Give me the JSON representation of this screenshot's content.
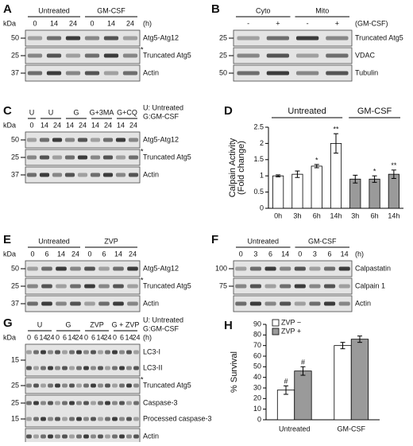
{
  "panels": [
    {
      "letter": "A",
      "kda": "kDa",
      "unit": "(h)",
      "groups": [
        {
          "label": "Untreated",
          "lanes": [
            "0",
            "14",
            "24"
          ]
        },
        {
          "label": "GM-CSF",
          "lanes": [
            "0",
            "14",
            "24"
          ]
        }
      ],
      "rows": [
        {
          "markers": [
            "50"
          ],
          "labels": [
            "Atg5-Atg12"
          ]
        },
        {
          "markers": [
            "25"
          ],
          "labels": [
            "Truncated Atg5"
          ],
          "note": "*"
        },
        {
          "markers": [
            "37"
          ],
          "labels": [
            "Actin"
          ]
        }
      ]
    },
    {
      "letter": "B",
      "unit": "(GM-CSF)",
      "groups": [
        {
          "label": "Cyto",
          "lanes": [
            "-",
            "+"
          ]
        },
        {
          "label": "Mito",
          "lanes": [
            "-",
            "+"
          ]
        }
      ],
      "rows": [
        {
          "markers": [
            "25"
          ],
          "labels": [
            "Truncated Atg5"
          ]
        },
        {
          "markers": [
            "25"
          ],
          "labels": [
            "VDAC"
          ]
        },
        {
          "markers": [
            "50"
          ],
          "labels": [
            "Tubulin"
          ]
        }
      ]
    },
    {
      "letter": "C",
      "kda": "kDa",
      "legend": [
        "U: Untreated",
        "G:GM-CSF"
      ],
      "groups": [
        {
          "label": "U",
          "lanes": [
            "0"
          ]
        },
        {
          "label": "U",
          "lanes": [
            "14",
            "24"
          ]
        },
        {
          "label": "G",
          "lanes": [
            "14",
            "24"
          ]
        },
        {
          "label": "G+3MA",
          "lanes": [
            "14",
            "24"
          ]
        },
        {
          "label": "G+CQ",
          "lanes": [
            "14",
            "24"
          ]
        }
      ],
      "rows": [
        {
          "markers": [
            "50"
          ],
          "labels": [
            "Atg5-Atg12"
          ]
        },
        {
          "markers": [
            "25"
          ],
          "labels": [
            "Truncated Atg5"
          ],
          "note": "*"
        },
        {
          "markers": [
            "37"
          ],
          "labels": [
            "Actin"
          ]
        }
      ]
    },
    {
      "letter": "E",
      "kda": "kDa",
      "groups": [
        {
          "label": "Untreated",
          "lanes": [
            "0",
            "6",
            "14",
            "24"
          ]
        },
        {
          "label": "ZVP",
          "lanes": [
            "0",
            "6",
            "14",
            "24"
          ]
        }
      ],
      "rows": [
        {
          "markers": [
            "50"
          ],
          "labels": [
            "Atg5-Atg12"
          ]
        },
        {
          "markers": [
            "25"
          ],
          "labels": [
            "Truncated Atg5"
          ],
          "note": "*"
        },
        {
          "markers": [
            "37"
          ],
          "labels": [
            "Actin"
          ]
        }
      ]
    },
    {
      "letter": "F",
      "unit": "(h)",
      "groups": [
        {
          "label": "Untreated",
          "lanes": [
            "0",
            "3",
            "6",
            "14"
          ]
        },
        {
          "label": "GM-CSF",
          "lanes": [
            "0",
            "3",
            "6",
            "14"
          ]
        }
      ],
      "rows": [
        {
          "markers": [
            "100"
          ],
          "labels": [
            "Calpastatin"
          ]
        },
        {
          "markers": [
            "75"
          ],
          "labels": [
            "Calpain 1"
          ]
        },
        {
          "markers": [],
          "labels": [
            "Actin"
          ]
        }
      ]
    },
    {
      "letter": "G",
      "kda": "kDa",
      "unit": "(h)",
      "legend": [
        "U: Untreated",
        "G:GM-CSF"
      ],
      "groups": [
        {
          "label": "U",
          "lanes": [
            "0",
            "6",
            "14",
            "24"
          ]
        },
        {
          "label": "G",
          "lanes": [
            "0",
            "6",
            "14",
            "24"
          ]
        },
        {
          "label": "ZVP",
          "lanes": [
            "0",
            "6",
            "14",
            "24"
          ]
        },
        {
          "label": "G + ZVP",
          "lanes": [
            "0",
            "6",
            "14",
            "24"
          ]
        }
      ],
      "rows": [
        {
          "markers": [
            "15"
          ],
          "labels": [
            "LC3-I",
            "LC3-II"
          ]
        },
        {
          "markers": [
            "25"
          ],
          "labels": [
            "Truncated Atg5"
          ],
          "note": "*"
        },
        {
          "markers": [
            "25",
            "15"
          ],
          "labels": [
            "Caspase-3",
            "Processed caspase-3"
          ]
        },
        {
          "markers": [],
          "labels": [
            "Actin"
          ]
        }
      ]
    }
  ],
  "chart_data": [
    {
      "type": "bar",
      "letter": "D",
      "ylabel": [
        "Calpain Activity",
        "(Fold change)"
      ],
      "ylim": [
        0,
        2.5
      ],
      "yticks": [
        0,
        0.5,
        1,
        1.5,
        2,
        2.5
      ],
      "groups": [
        {
          "label": "Untreated",
          "color": "#ffffff",
          "categories": [
            "0h",
            "3h",
            "6h",
            "14h"
          ],
          "values": [
            1,
            1.05,
            1.3,
            2.0
          ],
          "errors": [
            0.03,
            0.1,
            0.05,
            0.3
          ],
          "annotations": [
            null,
            null,
            "*",
            "**"
          ]
        },
        {
          "label": "GM-CSF",
          "color": "#9a9a9a",
          "categories": [
            "3h",
            "6h",
            "14h"
          ],
          "values": [
            0.9,
            0.9,
            1.05
          ],
          "errors": [
            0.12,
            0.1,
            0.13
          ],
          "annotations": [
            null,
            "*",
            "**"
          ]
        }
      ]
    },
    {
      "type": "bar",
      "letter": "H",
      "ylabel": "% Survival",
      "ylim": [
        0,
        90
      ],
      "yticks": [
        0,
        10,
        20,
        30,
        40,
        50,
        60,
        70,
        80,
        90
      ],
      "categories": [
        "Untreated",
        "GM-CSF"
      ],
      "series": [
        {
          "name": "ZVP −",
          "color": "#ffffff",
          "values": [
            28,
            70
          ],
          "errors": [
            4,
            3
          ],
          "annotations": [
            "#",
            null
          ]
        },
        {
          "name": "ZVP +",
          "color": "#9a9a9a",
          "values": [
            46,
            76
          ],
          "errors": [
            4,
            3
          ],
          "annotations": [
            "#",
            null
          ]
        }
      ]
    }
  ]
}
